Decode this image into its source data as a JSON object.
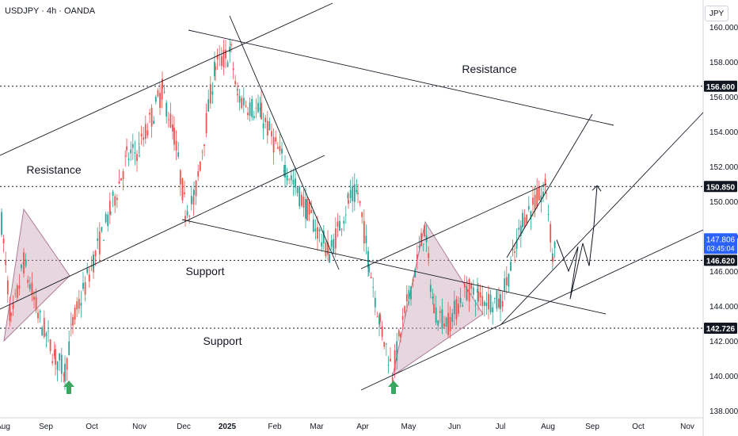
{
  "header": {
    "title": "USDJPY · 4h · OANDA",
    "currency": "JPY"
  },
  "chart_data": {
    "type": "candlestick",
    "symbol": "USDJPY",
    "timeframe": "4h",
    "source": "OANDA",
    "ylim": [
      137.8,
      161.0
    ],
    "x_ticks": [
      "Aug",
      "Sep",
      "Oct",
      "Nov",
      "Dec",
      "2025",
      "Feb",
      "Mar",
      "Apr",
      "May",
      "Jun",
      "Jul",
      "Aug",
      "Sep",
      "Oct",
      "Nov"
    ],
    "y_ticks": [
      138.0,
      140.0,
      142.0,
      144.0,
      146.0,
      148.0,
      150.0,
      152.0,
      154.0,
      156.0,
      158.0,
      160.0
    ],
    "y_tick_labels": [
      "138.000",
      "140.000",
      "142.000",
      "144.000",
      "146.000",
      "148.000",
      "150.000",
      "152.000",
      "154.000",
      "156.000",
      "158.000",
      "160.000"
    ],
    "price_levels": [
      {
        "label": "156.600",
        "value": 156.6
      },
      {
        "label": "150.850",
        "value": 150.85
      },
      {
        "label": "146.620",
        "value": 146.62
      },
      {
        "label": "142.726",
        "value": 142.726
      }
    ],
    "current_price": {
      "label": "147.806",
      "countdown": "03:45:04",
      "color": "#2962ff"
    },
    "annotations": [
      {
        "text": "Resistance",
        "x": "Feb",
        "y": 157.3
      },
      {
        "text": "Resistance",
        "x": "Aug",
        "y": 151.9
      },
      {
        "text": "Support",
        "x": "Nov",
        "y": 146.0
      },
      {
        "text": "Support",
        "x": "Nov",
        "y": 142.0
      }
    ],
    "close_path": [
      [
        "Aug",
        148.8
      ],
      [
        "Aug",
        143.0
      ],
      [
        "Aug",
        146.5
      ],
      [
        "Sep",
        143.5
      ],
      [
        "Sep",
        141.0
      ],
      [
        "Sep",
        140.3
      ],
      [
        "Sep",
        143.0
      ],
      [
        "Oct",
        146.6
      ],
      [
        "Oct",
        149.5
      ],
      [
        "Oct",
        152.5
      ],
      [
        "Nov",
        153.0
      ],
      [
        "Nov",
        156.4
      ],
      [
        "Nov",
        153.8
      ],
      [
        "Dec",
        149.6
      ],
      [
        "Dec",
        150.0
      ],
      [
        "Dec",
        153.8
      ],
      [
        "Dec",
        157.8
      ],
      [
        "2025",
        158.5
      ],
      [
        "2025",
        156.0
      ],
      [
        "Feb",
        155.0
      ],
      [
        "Feb",
        152.0
      ],
      [
        "Mar",
        149.5
      ],
      [
        "Mar",
        147.0
      ],
      [
        "Mar",
        150.0
      ],
      [
        "Apr",
        150.5
      ],
      [
        "Apr",
        146.5
      ],
      [
        "Apr",
        143.0
      ],
      [
        "Apr",
        140.2
      ],
      [
        "May",
        142.5
      ],
      [
        "May",
        148.4
      ],
      [
        "May",
        143.8
      ],
      [
        "Jun",
        143.0
      ],
      [
        "Jun",
        145.0
      ],
      [
        "Jun",
        144.5
      ],
      [
        "Jul",
        144.2
      ],
      [
        "Jul",
        147.0
      ],
      [
        "Jul",
        149.0
      ],
      [
        "Aug",
        150.7
      ],
      [
        "Aug",
        146.8
      ],
      [
        "Aug",
        147.8
      ]
    ],
    "projection_path": [
      147.8,
      146.0,
      147.4,
      144.4,
      147.6,
      146.3,
      148.6,
      150.9
    ],
    "colors": {
      "up": "#26a69a",
      "down": "#ef5350",
      "pattern_fill": "#c9a3b6",
      "arrow": "#3aa660",
      "line": "#131722"
    }
  }
}
